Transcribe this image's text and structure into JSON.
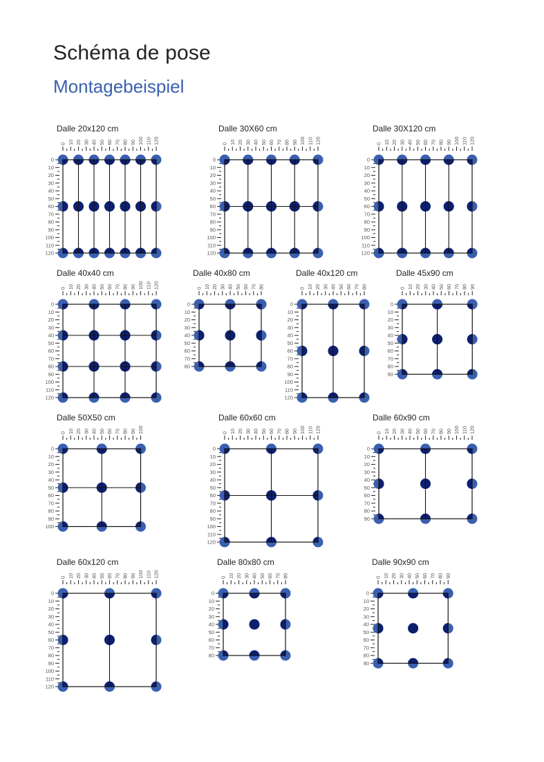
{
  "header": {
    "title": "Schéma de pose",
    "subtitle": "Montagebeispiel"
  },
  "colors": {
    "dot_outer": "#3a5fb0",
    "dot_inner": "#0e1f6e",
    "line": "#111111",
    "accent": "#3a5fb0"
  },
  "diagrams": [
    {
      "title": "Dalle 20x120 cm",
      "x_max": 120,
      "y_max": 120,
      "cols": [
        0,
        20,
        40,
        60,
        80,
        100,
        120
      ],
      "rows": [
        0,
        60,
        120
      ],
      "v_lines": [
        20,
        40,
        60,
        80,
        100
      ],
      "h_lines": []
    },
    {
      "title": "Dalle 30X60 cm",
      "x_max": 120,
      "y_max": 120,
      "cols": [
        0,
        30,
        60,
        90,
        120
      ],
      "rows": [
        0,
        60,
        120
      ],
      "v_lines": [
        30,
        60,
        90
      ],
      "h_lines": [
        60
      ]
    },
    {
      "title": "Dalle 30X120 cm",
      "x_max": 120,
      "y_max": 120,
      "cols": [
        0,
        30,
        60,
        90,
        120
      ],
      "rows": [
        0,
        60,
        120
      ],
      "v_lines": [
        30,
        60,
        90
      ],
      "h_lines": []
    },
    {
      "title": "Dalle 40x40 cm",
      "x_max": 120,
      "y_max": 120,
      "cols": [
        0,
        40,
        80,
        120
      ],
      "rows": [
        0,
        40,
        80,
        120
      ],
      "v_lines": [
        40,
        80
      ],
      "h_lines": [
        40,
        80
      ]
    },
    {
      "title": "Dalle 40x80 cm",
      "x_max": 80,
      "y_max": 80,
      "cols": [
        0,
        40,
        80
      ],
      "rows": [
        0,
        40,
        80
      ],
      "v_lines": [
        40
      ],
      "h_lines": []
    },
    {
      "title": "Dalle 40x120 cm",
      "x_max": 80,
      "y_max": 120,
      "cols": [
        0,
        40,
        80
      ],
      "rows": [
        0,
        60,
        120
      ],
      "v_lines": [
        40
      ],
      "h_lines": []
    },
    {
      "title": "Dalle 45x90 cm",
      "x_max": 90,
      "y_max": 90,
      "cols": [
        0,
        45,
        90
      ],
      "rows": [
        0,
        45,
        90
      ],
      "v_lines": [
        45
      ],
      "h_lines": []
    },
    {
      "title": "Dalle 50X50 cm",
      "x_max": 100,
      "y_max": 100,
      "cols": [
        0,
        50,
        100
      ],
      "rows": [
        0,
        50,
        100
      ],
      "v_lines": [
        50
      ],
      "h_lines": [
        50
      ]
    },
    {
      "title": "Dalle 60x60 cm",
      "x_max": 120,
      "y_max": 120,
      "cols": [
        0,
        60,
        120
      ],
      "rows": [
        0,
        60,
        120
      ],
      "v_lines": [
        60
      ],
      "h_lines": [
        60
      ]
    },
    {
      "title": "Dalle 60x90 cm",
      "x_max": 120,
      "y_max": 90,
      "cols": [
        0,
        60,
        120
      ],
      "rows": [
        0,
        45,
        90
      ],
      "v_lines": [
        60
      ],
      "h_lines": []
    },
    {
      "title": "Dalle 60x120 cm",
      "x_max": 120,
      "y_max": 120,
      "cols": [
        0,
        60,
        120
      ],
      "rows": [
        0,
        60,
        120
      ],
      "v_lines": [
        60
      ],
      "h_lines": []
    },
    {
      "title": "Dalle 80x80 cm",
      "x_max": 80,
      "y_max": 80,
      "cols": [
        0,
        40,
        80
      ],
      "rows": [
        0,
        40,
        80
      ],
      "v_lines": [],
      "h_lines": []
    },
    {
      "title": "Dalle 90x90 cm",
      "x_max": 90,
      "y_max": 90,
      "cols": [
        0,
        45,
        90
      ],
      "rows": [
        0,
        45,
        90
      ],
      "v_lines": [],
      "h_lines": []
    }
  ]
}
